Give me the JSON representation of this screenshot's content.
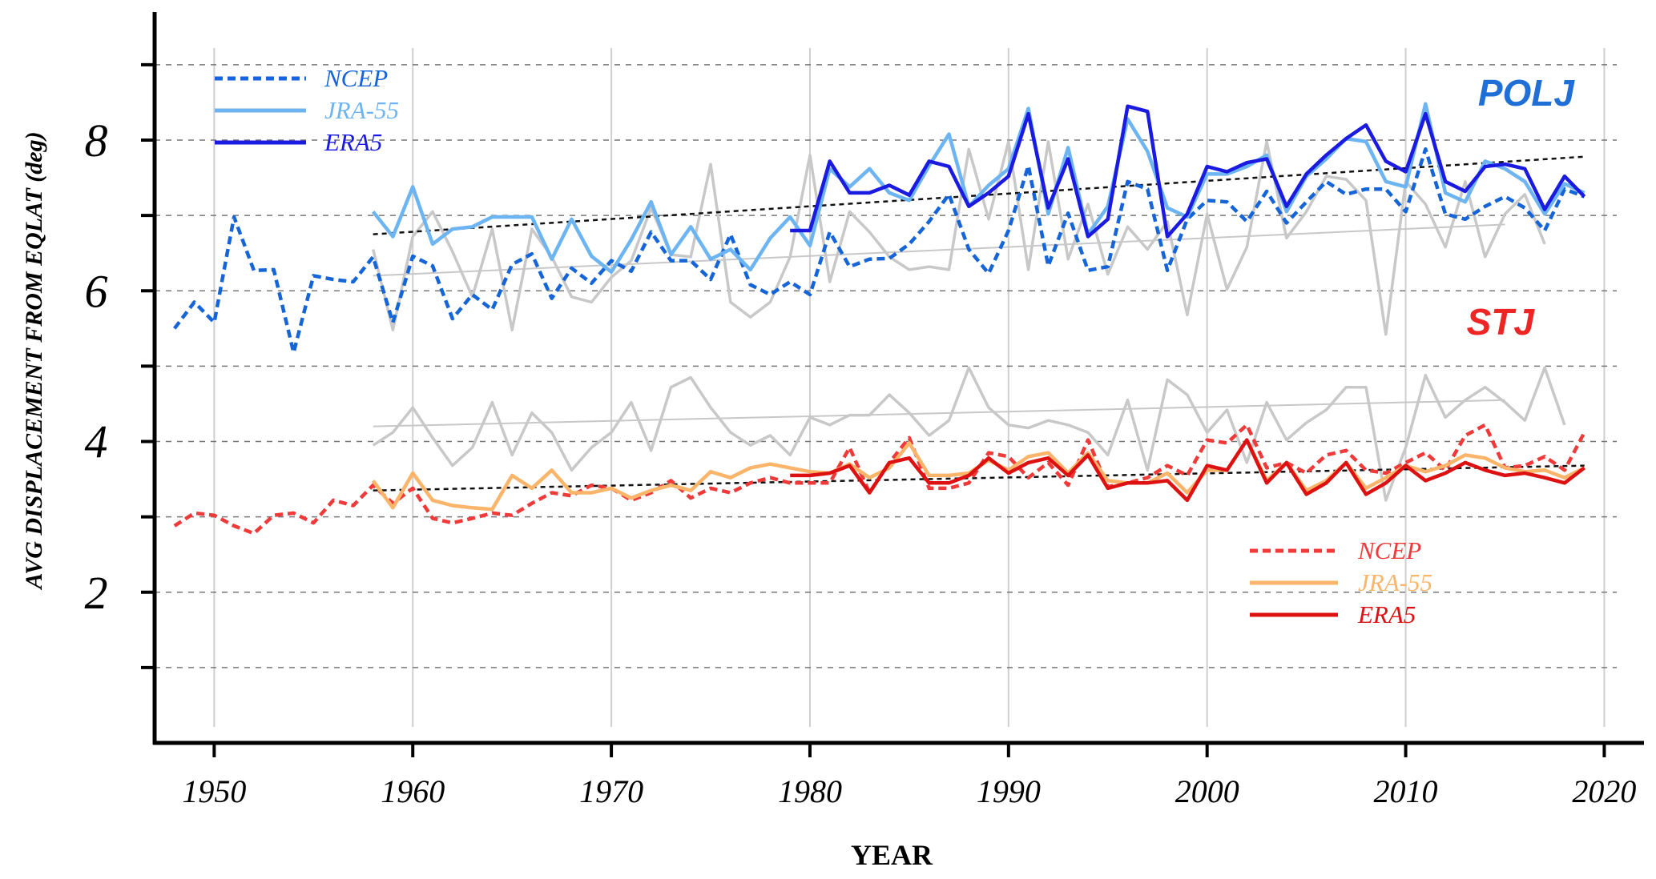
{
  "chart_data": {
    "type": "line",
    "xlabel": "YEAR",
    "ylabel": "AVG DISPLACEMENT FROM EQLAT (deg)",
    "xlim": [
      1947,
      2022
    ],
    "ylim": [
      0,
      9.7
    ],
    "xticks": [
      1950,
      1960,
      1970,
      1980,
      1990,
      2000,
      2010,
      2020
    ],
    "yticks": [
      2,
      4,
      6,
      8
    ],
    "ygrid_dashed": [
      1,
      2,
      3,
      4,
      5,
      6,
      7,
      8,
      9
    ],
    "xgrid": true,
    "groups": [
      {
        "label": "POLJ",
        "label_color": "#1f6fd6",
        "legend_placement": "top-left",
        "series": [
          {
            "name": "NCEP",
            "color": "#1565d8",
            "dash": "dashed",
            "x_start": 1948,
            "values": [
              5.5,
              5.85,
              5.58,
              6.98,
              6.27,
              6.28,
              5.18,
              6.2,
              6.15,
              6.12,
              6.45,
              5.58,
              6.46,
              6.33,
              5.63,
              5.95,
              5.75,
              6.35,
              6.49,
              5.9,
              6.3,
              6.1,
              6.4,
              6.26,
              6.78,
              6.4,
              6.4,
              6.15,
              6.75,
              6.08,
              5.95,
              6.12,
              5.95,
              6.78,
              6.32,
              6.42,
              6.43,
              6.62,
              6.92,
              7.28,
              6.55,
              6.23,
              6.8,
              7.66,
              6.33,
              7.03,
              6.27,
              6.32,
              7.45,
              7.35,
              6.27,
              6.95,
              7.2,
              7.18,
              6.92,
              7.32,
              6.9,
              7.18,
              7.45,
              7.28,
              7.35,
              7.35,
              7.05,
              7.88,
              7.02,
              6.95,
              7.12,
              7.25,
              7.1,
              6.8,
              7.35,
              7.25
            ]
          },
          {
            "name": "JRA-55",
            "color": "#6db5f2",
            "dash": "solid",
            "x_start": 1958,
            "values": [
              7.05,
              6.72,
              7.38,
              6.62,
              6.82,
              6.85,
              6.98,
              6.98,
              6.98,
              6.42,
              6.95,
              6.46,
              6.25,
              6.68,
              7.18,
              6.48,
              6.85,
              6.42,
              6.55,
              6.28,
              6.7,
              6.98,
              6.6,
              7.62,
              7.38,
              7.62,
              7.3,
              7.2,
              7.66,
              8.08,
              7.12,
              7.4,
              7.62,
              8.42,
              7.02,
              7.9,
              6.75,
              7.12,
              8.28,
              7.85,
              7.1,
              6.98,
              7.55,
              7.55,
              7.65,
              7.8,
              7.05,
              7.52,
              7.75,
              8.02,
              7.98,
              7.45,
              7.38,
              8.48,
              7.3,
              7.18,
              7.72,
              7.62,
              7.45,
              7.02,
              7.42,
              7.3
            ]
          },
          {
            "name": "ERA5",
            "color": "#1a1ae0",
            "dash": "solid",
            "x_start": 1979,
            "values": [
              6.8,
              6.8,
              7.72,
              7.3,
              7.3,
              7.4,
              7.27,
              7.72,
              7.65,
              7.12,
              7.3,
              7.52,
              8.35,
              7.1,
              7.75,
              6.72,
              6.95,
              8.45,
              8.38,
              6.72,
              7.02,
              7.65,
              7.58,
              7.7,
              7.75,
              7.12,
              7.55,
              7.8,
              8.02,
              8.2,
              7.72,
              7.58,
              8.35,
              7.45,
              7.32,
              7.65,
              7.68,
              7.62,
              7.08,
              7.52,
              7.25
            ]
          },
          {
            "name": "",
            "color": "#c8c8c8",
            "dash": "solid",
            "x_start": 1958,
            "values": [
              6.55,
              5.48,
              6.72,
              7.05,
              6.52,
              5.92,
              6.82,
              5.48,
              6.82,
              6.45,
              5.92,
              5.85,
              6.18,
              6.4,
              7.1,
              6.48,
              6.45,
              7.68,
              5.85,
              5.65,
              5.85,
              6.45,
              7.8,
              6.12,
              7.05,
              6.78,
              6.45,
              6.28,
              6.32,
              6.28,
              7.88,
              6.95,
              7.98,
              6.28,
              7.98,
              6.42,
              7.15,
              6.22,
              6.85,
              6.55,
              6.92,
              5.68,
              7.02,
              6.02,
              6.58,
              7.98,
              6.7,
              7.05,
              7.52,
              7.48,
              7.2,
              5.42,
              7.45,
              7.15,
              6.58,
              7.45,
              6.45,
              7.02,
              7.28,
              6.62
            ]
          }
        ],
        "trends": [
          {
            "color": "#111111",
            "dash": "dashed",
            "x": [
              1958,
              2019
            ],
            "y": [
              6.75,
              7.78
            ]
          },
          {
            "color": "#c8c8c8",
            "dash": "solid",
            "x": [
              1958,
              2015
            ],
            "y": [
              6.2,
              6.88
            ]
          }
        ]
      },
      {
        "label": "STJ",
        "label_color": "#ee2525",
        "legend_placement": "bottom-right",
        "series": [
          {
            "name": "NCEP",
            "color": "#f03a3a",
            "dash": "dashed",
            "x_start": 1948,
            "values": [
              2.88,
              3.05,
              3.02,
              2.88,
              2.78,
              3.02,
              3.05,
              2.92,
              3.22,
              3.15,
              3.42,
              3.18,
              3.38,
              2.98,
              2.92,
              2.98,
              3.05,
              3.02,
              3.18,
              3.32,
              3.28,
              3.42,
              3.38,
              3.22,
              3.32,
              3.48,
              3.25,
              3.38,
              3.32,
              3.45,
              3.52,
              3.45,
              3.45,
              3.45,
              3.92,
              3.32,
              3.72,
              4.05,
              3.38,
              3.38,
              3.45,
              3.85,
              3.8,
              3.52,
              3.72,
              3.42,
              4.02,
              3.4,
              3.45,
              3.52,
              3.68,
              3.55,
              4.02,
              3.98,
              4.22,
              3.65,
              3.72,
              3.58,
              3.82,
              3.88,
              3.62,
              3.58,
              3.72,
              3.85,
              3.62,
              4.08,
              4.22,
              3.65,
              3.68,
              3.8,
              3.62,
              4.12
            ]
          },
          {
            "name": "JRA-55",
            "color": "#fab56a",
            "dash": "solid",
            "x_start": 1958,
            "values": [
              3.48,
              3.12,
              3.58,
              3.22,
              3.15,
              3.12,
              3.1,
              3.55,
              3.38,
              3.62,
              3.32,
              3.32,
              3.38,
              3.25,
              3.35,
              3.42,
              3.35,
              3.6,
              3.52,
              3.65,
              3.7,
              3.65,
              3.6,
              3.58,
              3.7,
              3.52,
              3.65,
              3.98,
              3.55,
              3.55,
              3.58,
              3.75,
              3.62,
              3.8,
              3.85,
              3.58,
              3.85,
              3.48,
              3.45,
              3.45,
              3.58,
              3.32,
              3.62,
              3.62,
              4.02,
              3.48,
              3.72,
              3.35,
              3.48,
              3.72,
              3.38,
              3.52,
              3.68,
              3.6,
              3.68,
              3.82,
              3.78,
              3.65,
              3.6,
              3.62,
              3.52,
              3.65
            ]
          },
          {
            "name": "ERA5",
            "color": "#dd1111",
            "dash": "solid",
            "x_start": 1979,
            "values": [
              3.55,
              3.55,
              3.58,
              3.68,
              3.32,
              3.72,
              3.78,
              3.45,
              3.45,
              3.55,
              3.78,
              3.58,
              3.72,
              3.78,
              3.55,
              3.82,
              3.38,
              3.45,
              3.45,
              3.48,
              3.22,
              3.68,
              3.62,
              4.02,
              3.45,
              3.72,
              3.3,
              3.45,
              3.72,
              3.3,
              3.45,
              3.68,
              3.48,
              3.58,
              3.72,
              3.62,
              3.55,
              3.58,
              3.52,
              3.45,
              3.65
            ]
          },
          {
            "name": "",
            "color": "#c8c8c8",
            "dash": "solid",
            "x_start": 1958,
            "values": [
              3.95,
              4.12,
              4.45,
              4.05,
              3.68,
              3.92,
              4.52,
              3.82,
              4.38,
              4.12,
              3.62,
              3.92,
              4.12,
              4.52,
              3.88,
              4.72,
              4.85,
              4.45,
              4.12,
              3.95,
              4.08,
              3.82,
              4.32,
              4.22,
              4.35,
              4.35,
              4.62,
              4.38,
              4.08,
              4.28,
              4.98,
              4.45,
              4.22,
              4.18,
              4.28,
              4.22,
              4.12,
              3.82,
              4.55,
              3.62,
              4.82,
              4.62,
              4.12,
              4.42,
              3.72,
              4.52,
              4.02,
              4.25,
              4.42,
              4.72,
              4.72,
              3.22,
              3.92,
              4.88,
              4.32,
              4.55,
              4.72,
              4.52,
              4.28,
              4.98,
              4.22
            ]
          }
        ],
        "trends": [
          {
            "color": "#111111",
            "dash": "dashed",
            "x": [
              1958,
              2019
            ],
            "y": [
              3.35,
              3.68
            ]
          },
          {
            "color": "#c8c8c8",
            "dash": "solid",
            "x": [
              1958,
              2015
            ],
            "y": [
              4.2,
              4.55
            ]
          }
        ]
      }
    ]
  }
}
